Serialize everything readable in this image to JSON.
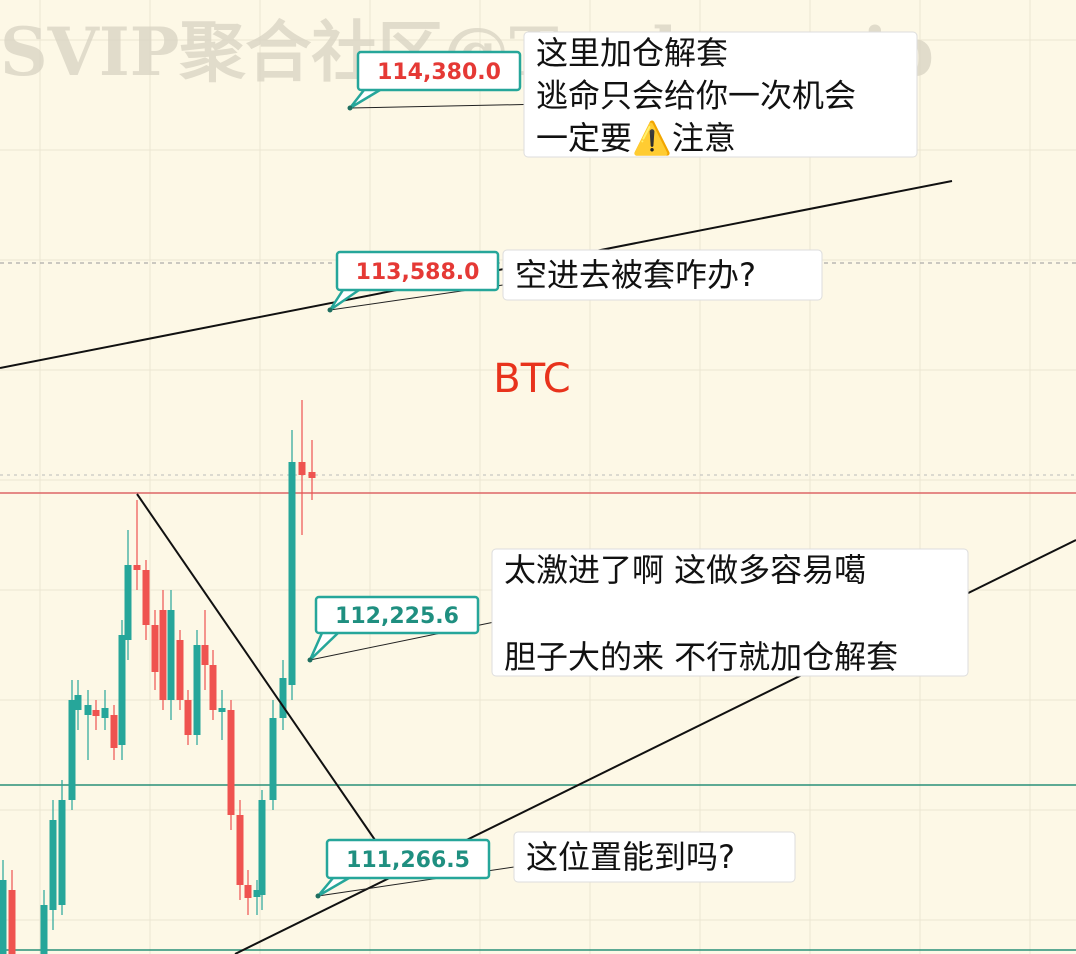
{
  "watermark": "SVIP聚合社区@Trader_svip",
  "title": "BTC",
  "price_labels": [
    {
      "price": "114,380.0",
      "note": [
        "这里加仓解套",
        "逃命只会给你一次机会",
        "一定要⚠️注意"
      ]
    },
    {
      "price": "113,588.0",
      "note": [
        "空进去被套咋办?"
      ]
    },
    {
      "price": "112,225.6",
      "note": [
        "太激进了啊 这做多容易噶",
        "胆子大的来 不行就加仓解套"
      ]
    },
    {
      "price": "111,266.5",
      "note": [
        "这位置能到吗?"
      ]
    }
  ]
}
